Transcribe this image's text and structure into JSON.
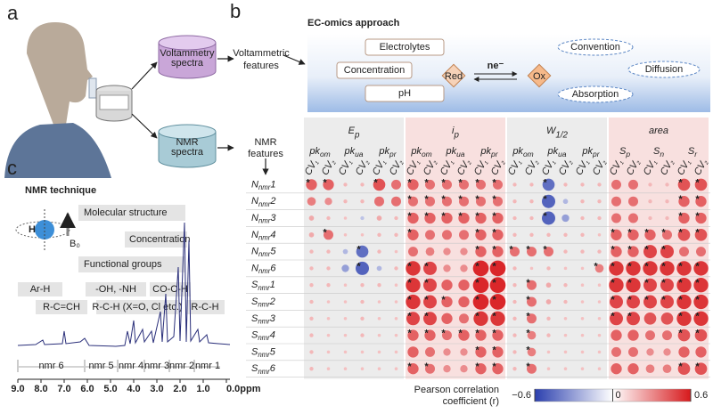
{
  "panel_labels": {
    "a": "a",
    "b": "b",
    "c": "c"
  },
  "panel_a": {
    "voltammetry_db": [
      "Voltammetry",
      "spectra"
    ],
    "nmr_db": [
      "NMR",
      "spectra"
    ],
    "voltammetric_features": [
      "Voltammetric",
      "features"
    ],
    "nmr_features": [
      "NMR",
      "features"
    ]
  },
  "panel_b": {
    "title": "EC-omics approach",
    "boxes": [
      "Electrolytes",
      "Concentration",
      "pH"
    ],
    "ellipses": [
      "Convention",
      "Diffusion",
      "Absorption"
    ],
    "red": "Red",
    "electrons": "ne⁻",
    "ox": "Ox"
  },
  "chart_data": {
    "type": "bubble-matrix",
    "groups": [
      {
        "main": "E",
        "sub": "p",
        "subgroups": [
          {
            "main": "pk",
            "sub": "om"
          },
          {
            "main": "pk",
            "sub": "ua"
          },
          {
            "main": "pk",
            "sub": "pr"
          }
        ]
      },
      {
        "main": "i",
        "sub": "p",
        "subgroups": [
          {
            "main": "pk",
            "sub": "om"
          },
          {
            "main": "pk",
            "sub": "ua"
          },
          {
            "main": "pk",
            "sub": "pr"
          }
        ]
      },
      {
        "main": "W",
        "sub": "1/2",
        "subgroups": [
          {
            "main": "pk",
            "sub": "om"
          },
          {
            "main": "pk",
            "sub": "ua"
          },
          {
            "main": "pk",
            "sub": "pr"
          }
        ]
      },
      {
        "main": "area",
        "sub": "",
        "subgroups": [
          {
            "main": "S",
            "sub": "p"
          },
          {
            "main": "S",
            "sub": "n"
          },
          {
            "main": "S",
            "sub": "r"
          }
        ]
      }
    ],
    "cv": [
      {
        "main": "CV",
        "sub": "1"
      },
      {
        "main": "CV",
        "sub": "2"
      }
    ],
    "rows": [
      {
        "main": "N",
        "sub": "nmr",
        "num": "1"
      },
      {
        "main": "N",
        "sub": "nmr",
        "num": "2"
      },
      {
        "main": "N",
        "sub": "nmr",
        "num": "3"
      },
      {
        "main": "N",
        "sub": "nmr",
        "num": "4"
      },
      {
        "main": "N",
        "sub": "nmr",
        "num": "5"
      },
      {
        "main": "N",
        "sub": "nmr",
        "num": "6"
      },
      {
        "main": "S",
        "sub": "nmr",
        "num": "1"
      },
      {
        "main": "S",
        "sub": "nmr",
        "num": "2"
      },
      {
        "main": "S",
        "sub": "nmr",
        "num": "3"
      },
      {
        "main": "S",
        "sub": "nmr",
        "num": "4"
      },
      {
        "main": "S",
        "sub": "nmr",
        "num": "5"
      },
      {
        "main": "S",
        "sub": "nmr",
        "num": "6"
      }
    ],
    "values": [
      [
        0.35,
        0.35,
        0.05,
        0.05,
        0.4,
        0.3,
        0.35,
        0.3,
        0.3,
        0.3,
        0.3,
        0.3,
        0.05,
        0.05,
        -0.4,
        0.05,
        0.05,
        0.05,
        0.3,
        0.3,
        0.05,
        0.05,
        0.4,
        0.4
      ],
      [
        0.25,
        0.2,
        0.05,
        0.05,
        0.3,
        0.3,
        0.3,
        0.3,
        0.3,
        0.3,
        0.3,
        0.3,
        0.05,
        0.05,
        -0.45,
        -0.1,
        0.05,
        0.05,
        0.3,
        0.3,
        0.05,
        0.05,
        0.35,
        0.35
      ],
      [
        0.1,
        0.05,
        0.02,
        -0.05,
        0.1,
        0.05,
        0.35,
        0.35,
        0.35,
        0.35,
        0.35,
        0.35,
        0.05,
        0.05,
        -0.45,
        -0.2,
        0.05,
        0.05,
        0.3,
        0.3,
        0.05,
        0.05,
        0.35,
        0.35
      ],
      [
        0.1,
        0.3,
        0.02,
        0.02,
        0.05,
        0.05,
        0.35,
        0.3,
        0.3,
        0.3,
        0.35,
        0.35,
        0.05,
        0.05,
        0.05,
        0.05,
        0.05,
        0.02,
        0.35,
        0.35,
        0.35,
        0.3,
        0.4,
        0.4
      ],
      [
        0.05,
        0.05,
        -0.1,
        -0.4,
        0.05,
        0.02,
        0.3,
        0.25,
        0.2,
        0.2,
        0.35,
        0.35,
        0.3,
        0.3,
        0.3,
        0.05,
        0.05,
        0.05,
        0.35,
        0.35,
        0.45,
        0.45,
        0.3,
        0.3
      ],
      [
        0.05,
        0.05,
        -0.2,
        -0.45,
        -0.1,
        0.05,
        0.5,
        0.45,
        0.2,
        0.2,
        0.55,
        0.55,
        0.05,
        0.02,
        0.05,
        0.02,
        0.02,
        0.25,
        0.5,
        0.5,
        0.5,
        0.5,
        0.5,
        0.5
      ],
      [
        0.05,
        0.05,
        0.02,
        0.05,
        0.05,
        0.02,
        0.5,
        0.45,
        0.35,
        0.35,
        0.55,
        0.55,
        0.05,
        0.3,
        0.1,
        0.05,
        0.02,
        0.02,
        0.5,
        0.5,
        0.45,
        0.45,
        0.5,
        0.5
      ],
      [
        0.05,
        0.02,
        0.02,
        0.05,
        0.02,
        0.02,
        0.5,
        0.45,
        0.35,
        0.35,
        0.55,
        0.55,
        0.05,
        0.3,
        0.1,
        0.05,
        0.02,
        0.02,
        0.45,
        0.45,
        0.45,
        0.45,
        0.5,
        0.5
      ],
      [
        0.05,
        0.02,
        0.02,
        0.05,
        0.02,
        0.02,
        0.45,
        0.45,
        0.35,
        0.3,
        0.5,
        0.5,
        0.05,
        0.3,
        0.05,
        0.02,
        0.02,
        0.02,
        0.45,
        0.45,
        0.4,
        0.4,
        0.5,
        0.5
      ],
      [
        0.05,
        0.02,
        0.02,
        0.05,
        0.02,
        0.02,
        0.35,
        0.35,
        0.3,
        0.35,
        0.35,
        0.35,
        0.05,
        0.25,
        0.05,
        0.02,
        0.02,
        0.02,
        0.35,
        0.35,
        0.3,
        0.3,
        0.4,
        0.4
      ],
      [
        0.05,
        0.02,
        0.02,
        0.02,
        0.02,
        0.02,
        0.35,
        0.3,
        0.2,
        0.2,
        0.35,
        0.35,
        0.05,
        0.25,
        0.02,
        0.02,
        0.02,
        0.02,
        0.3,
        0.3,
        0.2,
        0.2,
        0.35,
        0.35
      ],
      [
        0.05,
        0.02,
        0.02,
        0.02,
        0.02,
        0.02,
        0.35,
        0.3,
        0.2,
        0.2,
        0.35,
        0.35,
        0.05,
        0.3,
        0.02,
        0.02,
        0.02,
        0.02,
        0.35,
        0.35,
        0.25,
        0.25,
        0.4,
        0.4
      ]
    ],
    "significant": [
      [
        1,
        1,
        0,
        0,
        1,
        0,
        1,
        1,
        1,
        1,
        1,
        1,
        0,
        0,
        1,
        0,
        0,
        0,
        0,
        0,
        0,
        0,
        1,
        1
      ],
      [
        0,
        0,
        0,
        0,
        0,
        0,
        1,
        1,
        1,
        1,
        1,
        1,
        0,
        0,
        1,
        0,
        0,
        0,
        0,
        0,
        0,
        0,
        1,
        1
      ],
      [
        0,
        0,
        0,
        0,
        0,
        0,
        1,
        1,
        1,
        1,
        1,
        1,
        0,
        0,
        1,
        0,
        0,
        0,
        0,
        0,
        0,
        0,
        1,
        1
      ],
      [
        0,
        1,
        0,
        0,
        0,
        0,
        1,
        0,
        0,
        0,
        1,
        1,
        0,
        0,
        0,
        0,
        0,
        0,
        1,
        1,
        1,
        1,
        1,
        1
      ],
      [
        0,
        0,
        0,
        1,
        0,
        0,
        0,
        0,
        0,
        0,
        1,
        1,
        1,
        1,
        1,
        0,
        0,
        0,
        1,
        1,
        1,
        1,
        0,
        0
      ],
      [
        0,
        0,
        0,
        1,
        0,
        0,
        1,
        1,
        0,
        0,
        1,
        1,
        0,
        0,
        0,
        0,
        0,
        1,
        1,
        1,
        1,
        1,
        1,
        1
      ],
      [
        0,
        0,
        0,
        0,
        0,
        0,
        1,
        1,
        0,
        0,
        1,
        1,
        0,
        1,
        0,
        0,
        0,
        0,
        1,
        1,
        1,
        1,
        1,
        1
      ],
      [
        0,
        0,
        0,
        0,
        0,
        0,
        1,
        1,
        1,
        0,
        1,
        1,
        0,
        1,
        0,
        0,
        0,
        0,
        1,
        1,
        1,
        1,
        1,
        1
      ],
      [
        0,
        0,
        0,
        0,
        0,
        0,
        1,
        1,
        0,
        0,
        1,
        1,
        0,
        1,
        0,
        0,
        0,
        0,
        1,
        1,
        0,
        0,
        1,
        1
      ],
      [
        0,
        0,
        0,
        0,
        0,
        0,
        1,
        1,
        1,
        1,
        1,
        1,
        0,
        1,
        0,
        0,
        0,
        0,
        0,
        0,
        0,
        0,
        1,
        1
      ],
      [
        0,
        0,
        0,
        0,
        0,
        0,
        0,
        0,
        0,
        0,
        1,
        1,
        0,
        1,
        0,
        0,
        0,
        0,
        0,
        0,
        0,
        0,
        0,
        0
      ],
      [
        0,
        0,
        0,
        0,
        0,
        0,
        1,
        1,
        0,
        0,
        1,
        1,
        0,
        1,
        0,
        0,
        0,
        0,
        0,
        0,
        0,
        0,
        1,
        1
      ]
    ],
    "star": "*",
    "group_backgrounds": [
      "#ececec",
      "#f8e0df",
      "#ececec",
      "#f8e0df"
    ],
    "negative_color": "#2b3fae",
    "positive_color": "#d7191c",
    "colorbar": {
      "title": [
        "Pearson correlation",
        "coefficient (r)"
      ],
      "clim": [
        -0.6,
        0.6
      ],
      "ticks": [
        {
          "value": -0.6,
          "label": "−0.6"
        },
        0,
        0.6
      ]
    }
  },
  "panel_c": {
    "title": "NMR technique",
    "nucleus": "H",
    "field": "B₀",
    "boxes": [
      "Molecular structure",
      "Concentration",
      "Functional groups"
    ],
    "peak_labels": [
      "Ar-H",
      "-OH, -NH",
      "CO-C-H",
      "R-C=CH",
      "R-C-H (X=O, Cl etc.)",
      "R-C-H"
    ],
    "axis_ticks": [
      "9.0",
      "8.0",
      "7.0",
      "6.0",
      "5.0",
      "4.0",
      "3.0",
      "2.0",
      "1.0",
      "0.0ppm"
    ],
    "regions": [
      "nmr 6",
      "nmr 5",
      "nmr 4",
      "nmr 3",
      "nmr 2",
      "nmr 1"
    ]
  }
}
